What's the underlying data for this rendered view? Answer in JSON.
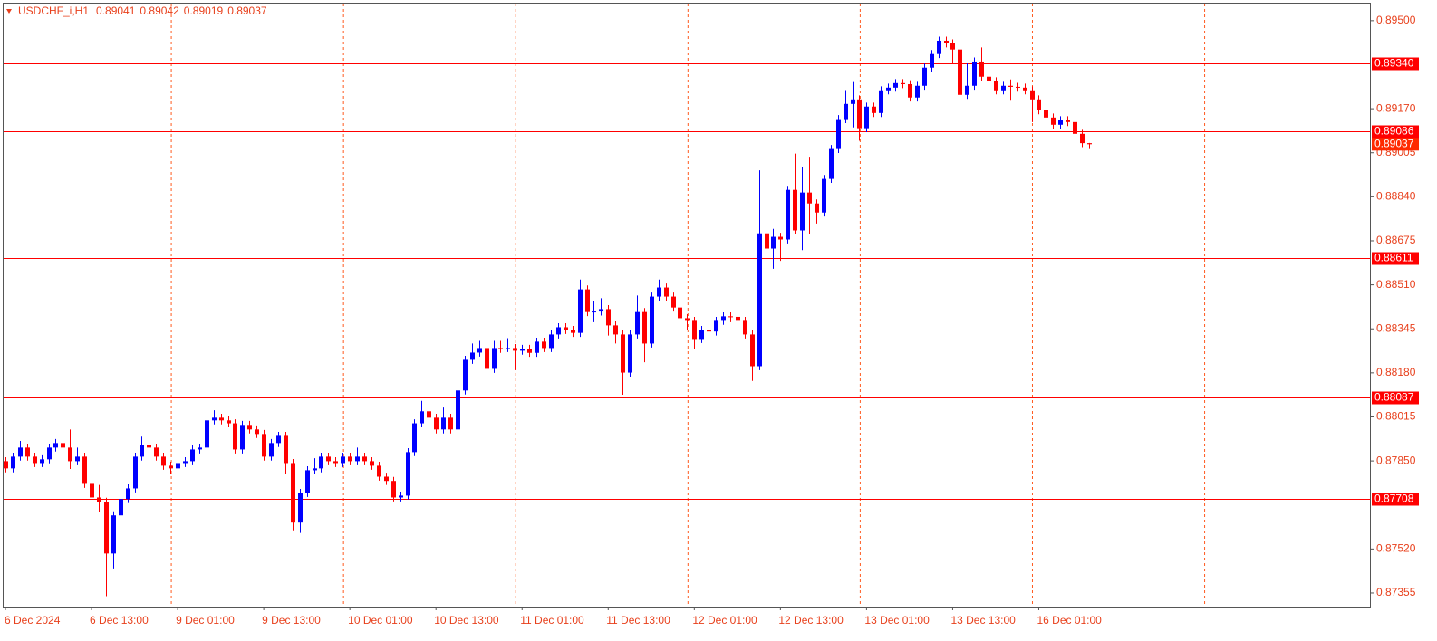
{
  "chart_data": {
    "type": "candlestick",
    "title": "USDCHF_i,H1",
    "categories": [
      "6 Dec 2024",
      null,
      null,
      null,
      null,
      null,
      null,
      null,
      null,
      null,
      null,
      null,
      "6 Dec 13:00",
      null,
      null,
      null,
      null,
      null,
      null,
      null,
      null,
      null,
      null,
      null,
      "9 Dec 01:00",
      null,
      null,
      null,
      null,
      null,
      null,
      null,
      null,
      null,
      null,
      null,
      "9 Dec 13:00",
      null,
      null,
      null,
      null,
      null,
      null,
      null,
      null,
      null,
      null,
      null,
      "10 Dec 01:00",
      null,
      null,
      null,
      null,
      null,
      null,
      null,
      null,
      null,
      null,
      null,
      "10 Dec 13:00",
      null,
      null,
      null,
      null,
      null,
      null,
      null,
      null,
      null,
      null,
      null,
      "11 Dec 01:00",
      null,
      null,
      null,
      null,
      null,
      null,
      null,
      null,
      null,
      null,
      null,
      "11 Dec 13:00",
      null,
      null,
      null,
      null,
      null,
      null,
      null,
      null,
      null,
      null,
      null,
      "12 Dec 01:00",
      null,
      null,
      null,
      null,
      null,
      null,
      null,
      null,
      null,
      null,
      null,
      "12 Dec 13:00",
      null,
      null,
      null,
      null,
      null,
      null,
      null,
      null,
      null,
      null,
      null,
      "13 Dec 01:00",
      null,
      null,
      null,
      null,
      null,
      null,
      null,
      null,
      null,
      null,
      null,
      "13 Dec 13:00",
      null,
      null,
      null,
      null,
      null,
      null,
      null,
      null,
      null,
      null,
      null,
      "16 Dec 01:00",
      null,
      null,
      null,
      null,
      null,
      null,
      null
    ],
    "open": [
      0.87849,
      0.87822,
      0.87866,
      0.879,
      0.87866,
      0.87842,
      0.87856,
      0.879,
      0.87917,
      0.879,
      0.87849,
      0.87866,
      0.87764,
      0.87713,
      0.87697,
      0.87503,
      0.87646,
      0.87707,
      0.87747,
      0.87866,
      0.8791,
      0.879,
      0.87866,
      0.87832,
      0.87822,
      0.87842,
      0.87849,
      0.87893,
      0.879,
      0.88002,
      0.88012,
      0.88002,
      0.87991,
      0.87893,
      0.87985,
      0.87968,
      0.87951,
      0.87866,
      0.87917,
      0.87944,
      0.87842,
      0.87619,
      0.8773,
      0.87815,
      0.87822,
      0.87866,
      0.87849,
      0.87842,
      0.87866,
      0.87849,
      0.87866,
      0.87849,
      0.87832,
      0.87791,
      0.87775,
      0.87713,
      0.8772,
      0.87883,
      0.87991,
      0.88036,
      0.88012,
      0.87968,
      0.88012,
      0.87968,
      0.88114,
      0.88229,
      0.88256,
      0.88273,
      0.88195,
      0.88273,
      0.8827,
      0.88273,
      0.88263,
      0.8827,
      0.88255,
      0.88297,
      0.88273,
      0.88324,
      0.88351,
      0.88341,
      0.8833,
      0.88493,
      0.88408,
      0.8841,
      0.88419,
      0.88358,
      0.88324,
      0.88181,
      0.88324,
      0.88408,
      0.8829,
      0.88466,
      0.885,
      0.88466,
      0.88425,
      0.88385,
      0.88375,
      0.88307,
      0.88341,
      0.88335,
      0.88375,
      0.88392,
      0.8839,
      0.88375,
      0.88324,
      0.88205,
      0.88703,
      0.88646,
      0.8869,
      0.8868,
      0.88866,
      0.88714,
      0.88856,
      0.88815,
      0.88781,
      0.88907,
      0.89019,
      0.89131,
      0.89188,
      0.89205,
      0.89097,
      0.89178,
      0.89154,
      0.89239,
      0.89249,
      0.89266,
      0.89262,
      0.89212,
      0.89256,
      0.89324,
      0.89375,
      0.89425,
      0.89415,
      0.89392,
      0.89222,
      0.89256,
      0.89347,
      0.8929,
      0.89273,
      0.89239,
      0.89256,
      0.89252,
      0.89249,
      0.89239,
      0.89205,
      0.89164,
      0.89137,
      0.8911,
      0.89127,
      0.8912,
      0.89076,
      0.89041
    ],
    "high": [
      0.87864,
      0.87881,
      0.87925,
      0.87915,
      0.87881,
      0.87871,
      0.87915,
      0.87932,
      0.8795,
      0.87968,
      0.879,
      0.87881,
      0.87779,
      0.8776,
      0.87712,
      0.87661,
      0.87722,
      0.87762,
      0.87881,
      0.87941,
      0.8796,
      0.87915,
      0.87881,
      0.87847,
      0.87857,
      0.87864,
      0.87908,
      0.87915,
      0.88017,
      0.8804,
      0.88027,
      0.88017,
      0.88006,
      0.88,
      0.88,
      0.87983,
      0.87966,
      0.87932,
      0.87959,
      0.87959,
      0.87857,
      0.87745,
      0.8783,
      0.8786,
      0.87881,
      0.87881,
      0.87864,
      0.87881,
      0.87881,
      0.879,
      0.87881,
      0.87864,
      0.87847,
      0.87806,
      0.8779,
      0.87735,
      0.87898,
      0.88006,
      0.88075,
      0.88051,
      0.88027,
      0.8805,
      0.88027,
      0.88129,
      0.88244,
      0.8829,
      0.883,
      0.88288,
      0.883,
      0.883,
      0.8831,
      0.88288,
      0.88285,
      0.88285,
      0.88312,
      0.88312,
      0.88339,
      0.88366,
      0.88366,
      0.88356,
      0.8853,
      0.88508,
      0.8845,
      0.8846,
      0.88434,
      0.88373,
      0.88339,
      0.88339,
      0.8847,
      0.88423,
      0.88481,
      0.8853,
      0.88515,
      0.88481,
      0.8844,
      0.884,
      0.8839,
      0.88356,
      0.88356,
      0.8839,
      0.88407,
      0.88407,
      0.8842,
      0.8839,
      0.88339,
      0.88939,
      0.88718,
      0.8872,
      0.88705,
      0.88881,
      0.89002,
      0.8895,
      0.8899,
      0.8883,
      0.88922,
      0.89034,
      0.89146,
      0.8924,
      0.8927,
      0.8922,
      0.89193,
      0.89193,
      0.89254,
      0.89264,
      0.89281,
      0.89281,
      0.89277,
      0.89271,
      0.89339,
      0.8939,
      0.8944,
      0.8944,
      0.8943,
      0.89407,
      0.8934,
      0.89362,
      0.894,
      0.89305,
      0.89288,
      0.89271,
      0.8928,
      0.89267,
      0.89264,
      0.89254,
      0.8922,
      0.89179,
      0.89152,
      0.89142,
      0.89142,
      0.89135,
      0.89091,
      0.89042
    ],
    "low": [
      0.87807,
      0.87807,
      0.87851,
      0.87851,
      0.87827,
      0.87827,
      0.87841,
      0.87885,
      0.87885,
      0.8782,
      0.87834,
      0.87749,
      0.8768,
      0.8766,
      0.87343,
      0.87447,
      0.87631,
      0.87692,
      0.87732,
      0.87851,
      0.87885,
      0.87851,
      0.87817,
      0.878,
      0.87807,
      0.87827,
      0.87834,
      0.87878,
      0.87885,
      0.87987,
      0.87987,
      0.87976,
      0.87878,
      0.87878,
      0.87953,
      0.87936,
      0.87851,
      0.87851,
      0.87902,
      0.878,
      0.8759,
      0.8758,
      0.87715,
      0.878,
      0.87807,
      0.87834,
      0.87827,
      0.87827,
      0.87834,
      0.87834,
      0.87834,
      0.87817,
      0.87776,
      0.8776,
      0.87698,
      0.87698,
      0.87705,
      0.87868,
      0.87976,
      0.87997,
      0.87953,
      0.87953,
      0.87953,
      0.87953,
      0.88099,
      0.88214,
      0.88241,
      0.8818,
      0.8818,
      0.88255,
      0.88258,
      0.8819,
      0.88248,
      0.8824,
      0.8824,
      0.88258,
      0.88258,
      0.88309,
      0.88326,
      0.88315,
      0.88315,
      0.88393,
      0.8837,
      0.88395,
      0.8832,
      0.8829,
      0.88098,
      0.88166,
      0.88309,
      0.8822,
      0.88275,
      0.88451,
      0.88451,
      0.8841,
      0.8837,
      0.8834,
      0.8827,
      0.88292,
      0.8832,
      0.8832,
      0.8836,
      0.8837,
      0.8836,
      0.88309,
      0.8815,
      0.8819,
      0.8853,
      0.8857,
      0.886,
      0.88665,
      0.88699,
      0.8864,
      0.887,
      0.8874,
      0.88766,
      0.88892,
      0.89004,
      0.89116,
      0.891,
      0.8905,
      0.89082,
      0.89139,
      0.89139,
      0.89224,
      0.89234,
      0.89247,
      0.89197,
      0.89197,
      0.89241,
      0.89309,
      0.8936,
      0.894,
      0.8934,
      0.89144,
      0.89207,
      0.89241,
      0.89275,
      0.89258,
      0.89224,
      0.89224,
      0.892,
      0.89234,
      0.89224,
      0.8912,
      0.89149,
      0.89122,
      0.89095,
      0.89095,
      0.89105,
      0.89061,
      0.89026,
      0.89019
    ],
    "close": [
      0.87822,
      0.87866,
      0.879,
      0.87866,
      0.87842,
      0.87856,
      0.879,
      0.87917,
      0.879,
      0.87849,
      0.87866,
      0.87764,
      0.87713,
      0.87697,
      0.87503,
      0.87646,
      0.87707,
      0.87747,
      0.87866,
      0.8791,
      0.879,
      0.87866,
      0.87832,
      0.87822,
      0.87842,
      0.87849,
      0.87893,
      0.879,
      0.88002,
      0.88012,
      0.88002,
      0.87991,
      0.87893,
      0.87985,
      0.87968,
      0.87951,
      0.87866,
      0.87917,
      0.87944,
      0.87842,
      0.87619,
      0.8773,
      0.87815,
      0.87822,
      0.87866,
      0.87849,
      0.87842,
      0.87866,
      0.87849,
      0.87866,
      0.87849,
      0.87832,
      0.87791,
      0.87775,
      0.87713,
      0.8772,
      0.87883,
      0.87991,
      0.88036,
      0.88012,
      0.87968,
      0.88012,
      0.87968,
      0.88114,
      0.88229,
      0.88256,
      0.88273,
      0.88195,
      0.88273,
      0.8827,
      0.88273,
      0.88263,
      0.8827,
      0.88255,
      0.88297,
      0.88273,
      0.88324,
      0.88351,
      0.88341,
      0.8833,
      0.88493,
      0.88408,
      0.8841,
      0.88419,
      0.88358,
      0.88324,
      0.88181,
      0.88324,
      0.88408,
      0.8829,
      0.88466,
      0.885,
      0.88466,
      0.88425,
      0.88385,
      0.88375,
      0.88307,
      0.88341,
      0.88335,
      0.88375,
      0.88392,
      0.8839,
      0.88375,
      0.88324,
      0.88205,
      0.88703,
      0.88646,
      0.8869,
      0.8868,
      0.88866,
      0.88714,
      0.88856,
      0.88815,
      0.88781,
      0.88907,
      0.89019,
      0.89131,
      0.89188,
      0.89205,
      0.89097,
      0.89178,
      0.89154,
      0.89239,
      0.89249,
      0.89266,
      0.89262,
      0.89212,
      0.89256,
      0.89324,
      0.89375,
      0.89425,
      0.89415,
      0.89392,
      0.89222,
      0.89256,
      0.89347,
      0.8929,
      0.89273,
      0.89239,
      0.89256,
      0.89252,
      0.89249,
      0.89239,
      0.89205,
      0.89164,
      0.89137,
      0.8911,
      0.89127,
      0.8912,
      0.89076,
      0.89041,
      0.89037
    ],
    "up_color": "#0000ff",
    "down_color": "#ff0000",
    "ylim": [
      0.87304,
      0.89564
    ],
    "yticks": [
      {
        "value": 0.895,
        "label": "0.89500"
      },
      {
        "value": 0.8917,
        "label": "0.89170"
      },
      0.89005,
      {
        "value": 0.8884,
        "label": "0.88840"
      },
      0.88675,
      {
        "value": 0.8851,
        "label": "0.88510"
      },
      0.88345,
      {
        "value": 0.8818,
        "label": "0.88180"
      },
      0.88015,
      {
        "value": 0.8785,
        "label": "0.87850"
      },
      {
        "value": 0.8752,
        "label": "0.87520"
      },
      0.87355
    ],
    "levels": [
      {
        "value": 0.8934,
        "label": "0.89340"
      },
      0.89086,
      0.88611,
      0.88087,
      0.87708
    ],
    "level_color": "#ff0000",
    "grid": true
  }
}
